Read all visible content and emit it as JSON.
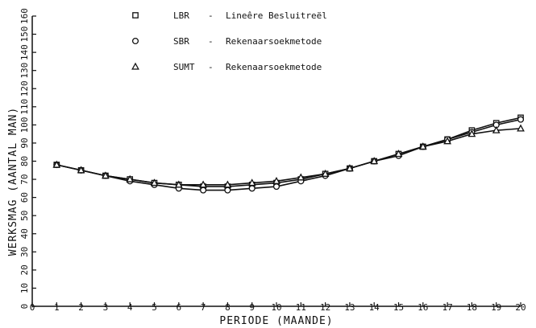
{
  "chart_data": {
    "type": "line",
    "xlabel": "PERIODE (MAANDE)",
    "ylabel": "WERKSMAG (AANTAL MAN)",
    "xlim": [
      0,
      20
    ],
    "ylim": [
      0,
      160
    ],
    "x_ticks": [
      0,
      1,
      2,
      3,
      4,
      5,
      6,
      7,
      8,
      9,
      10,
      11,
      12,
      13,
      14,
      15,
      16,
      17,
      18,
      19,
      20
    ],
    "y_ticks": [
      0,
      10,
      20,
      30,
      40,
      50,
      60,
      70,
      80,
      90,
      100,
      110,
      120,
      130,
      140,
      150,
      160
    ],
    "grid": false,
    "legend_position": "top-left",
    "x": [
      1,
      2,
      3,
      4,
      5,
      6,
      7,
      8,
      9,
      10,
      11,
      12,
      13,
      14,
      15,
      16,
      17,
      18,
      19,
      20
    ],
    "series": [
      {
        "name": "LBR",
        "marker": "square",
        "legend_desc": "Lineêre Besluitreël",
        "values": [
          78,
          75,
          72,
          70,
          68,
          67,
          66,
          66,
          67,
          68,
          70,
          73,
          76,
          80,
          84,
          88,
          92,
          97,
          101,
          104
        ]
      },
      {
        "name": "SBR",
        "marker": "circle",
        "legend_desc": "Rekenaarsoekmetode",
        "values": [
          78,
          75,
          72,
          69,
          67,
          65,
          64,
          64,
          65,
          66,
          69,
          72,
          76,
          80,
          83,
          88,
          92,
          96,
          100,
          103
        ]
      },
      {
        "name": "SUMT",
        "marker": "triangle",
        "legend_desc": "Rekenaarsoekmetode",
        "values": [
          78,
          75,
          72,
          70,
          68,
          67,
          67,
          67,
          68,
          69,
          71,
          73,
          76,
          80,
          84,
          88,
          91,
          95,
          97,
          98
        ]
      }
    ]
  }
}
